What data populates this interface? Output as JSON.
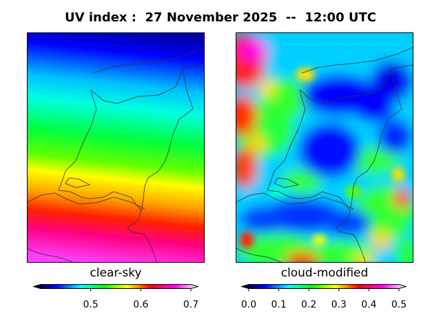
{
  "title": "UV index :  27 November 2025  --  12:00 UTC",
  "panels": [
    {
      "name": "clear-sky",
      "label": "clear-sky"
    },
    {
      "name": "cloud-modified",
      "label": "cloud-modified"
    }
  ],
  "colorbars": [
    {
      "name": "clear-sky",
      "range": [
        0.4,
        0.7
      ],
      "ticks": [
        "0.5",
        "0.6",
        "0.7"
      ],
      "tick_values": [
        0.5,
        0.6,
        0.7
      ]
    },
    {
      "name": "cloud-modified",
      "range": [
        0.0,
        0.5
      ],
      "ticks": [
        "0.0",
        "0.1",
        "0.2",
        "0.3",
        "0.4",
        "0.5"
      ],
      "tick_values": [
        0.0,
        0.1,
        0.2,
        0.3,
        0.4,
        0.5
      ]
    }
  ],
  "colormap": [
    "#000000",
    "#0000ff",
    "#00ffff",
    "#00ff00",
    "#ffff00",
    "#ff0000",
    "#ff00ff",
    "#ffffff"
  ]
}
